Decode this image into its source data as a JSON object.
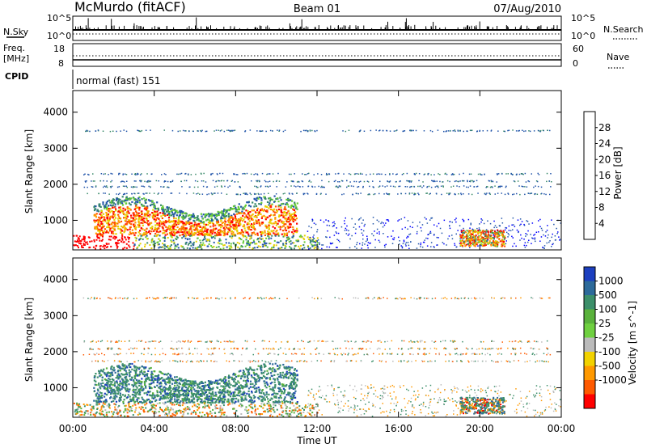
{
  "header": {
    "station": "McMurdo (fitACF)",
    "beam": "Beam 01",
    "date": "07/Aug/2010"
  },
  "summary_panel": {
    "nsky_label": "N.Sky",
    "nsky_ticks": [
      "10^5",
      "10^0"
    ],
    "nsearch_label": "N.Search",
    "nsearch_ticks": [
      "10^5",
      "10^0"
    ],
    "freq_label": "Freq.",
    "freq_unit": "[MHz]",
    "freq_ticks": [
      "18",
      "8"
    ],
    "nave_label": "Nave",
    "nave_ticks": [
      "60",
      "0"
    ],
    "cpid_label": "CPID",
    "cpid_value": "normal (fast) 151"
  },
  "chart_data": [
    {
      "type": "heatmap",
      "title": "",
      "xlabel": "Time UT",
      "ylabel": "Slant Range [km]",
      "xlim": [
        0,
        24
      ],
      "ylim": [
        180,
        4600
      ],
      "x_ticks": [
        "00:00",
        "04:00",
        "08:00",
        "12:00",
        "16:00",
        "20:00",
        "00:00"
      ],
      "y_ticks": [
        "1000",
        "2000",
        "3000",
        "4000"
      ],
      "colorbar": {
        "label": "Power [dB]",
        "ticks": [
          "4",
          "8",
          "12",
          "16",
          "20",
          "24",
          "28"
        ],
        "range": [
          0,
          30
        ],
        "colors": [
          "#0000ff",
          "#2255aa",
          "#3a8a6a",
          "#66cc33",
          "#e6d200",
          "#ff9900",
          "#ff5500",
          "#ff0000"
        ]
      },
      "regions": [
        {
          "t0": 0.5,
          "t1": 11.5,
          "r0": 200,
          "r1": 400,
          "level": 3
        },
        {
          "t0": 1.0,
          "t1": 11.0,
          "r0": 600,
          "r1": 1700,
          "level": 7
        },
        {
          "t0": 19.0,
          "t1": 21.0,
          "r0": 300,
          "r1": 700,
          "level": 6
        },
        {
          "t0": 11.5,
          "t1": 18.0,
          "r0": 300,
          "r1": 1200,
          "level": 1
        }
      ]
    },
    {
      "type": "heatmap",
      "title": "",
      "xlabel": "Time UT",
      "ylabel": "Slant Range [km]",
      "xlim": [
        0,
        24
      ],
      "ylim": [
        180,
        4600
      ],
      "x_ticks": [
        "00:00",
        "04:00",
        "08:00",
        "12:00",
        "16:00",
        "20:00",
        "00:00"
      ],
      "y_ticks": [
        "1000",
        "2000",
        "3000",
        "4000"
      ],
      "colorbar": {
        "label": "Velocity [m s^-1]",
        "ticks": [
          "1000",
          "500",
          "100",
          "25",
          "-25",
          "-100",
          "-500",
          "-1000"
        ],
        "colors": [
          "#1c3fbf",
          "#2d6a9a",
          "#3c8f6a",
          "#5ab23c",
          "#6fd040",
          "#bbbbbb",
          "#f2d200",
          "#ff9900",
          "#ff5a00",
          "#ff0000"
        ]
      },
      "regions": [
        {
          "t0": 1.0,
          "t1": 11.0,
          "r0": 600,
          "r1": 1700,
          "vel": "low"
        },
        {
          "t0": 19.0,
          "t1": 21.0,
          "r0": 300,
          "r1": 700,
          "vel": "low"
        }
      ]
    }
  ]
}
